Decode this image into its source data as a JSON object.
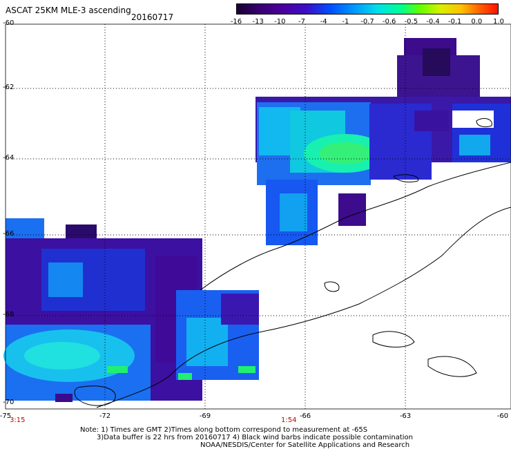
{
  "title": "ASCAT 25KM MLE-3 ascending",
  "date": "20160717",
  "colorbar": {
    "ticks": [
      "-16",
      "-13",
      "-10",
      "-7",
      "-4",
      "-1",
      "-0.7",
      "-0.6",
      "-0.5",
      "-0.4",
      "-0.1",
      "0.0",
      "1.0"
    ]
  },
  "axes": {
    "lat_labels": [
      "-60",
      "-62",
      "-64",
      "-66",
      "-68",
      "-70"
    ],
    "lon_labels": [
      "-75",
      "-72",
      "-69",
      "-66",
      "-63",
      "-60"
    ]
  },
  "times": {
    "left": "3:15",
    "mid": "1:54"
  },
  "notes": {
    "line1": "Note: 1) Times are GMT 2)Times along bottom correspond to measurement at -65S",
    "line2": "3)Data buffer is 22 hrs from 20160717 4) Black wind barbs indicate possible contamination",
    "line3": "NOAA/NESDIS/Center for Satellite Applications and Research"
  }
}
